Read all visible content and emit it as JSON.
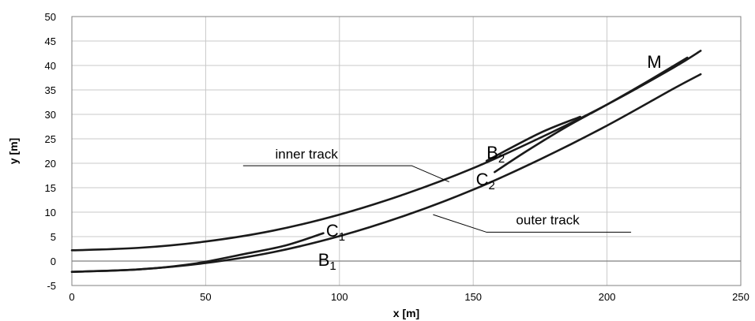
{
  "chart_data": {
    "type": "line",
    "xlabel": "x [m]",
    "ylabel": "y [m]",
    "xlim": [
      0,
      250
    ],
    "ylim": [
      -5,
      50
    ],
    "x_ticks": [
      0,
      50,
      100,
      150,
      200,
      250
    ],
    "y_ticks": [
      -5,
      0,
      5,
      10,
      15,
      20,
      25,
      30,
      35,
      40,
      45,
      50
    ],
    "grid": true,
    "colors": {
      "line": "#1a1a1a",
      "grid": "#c8c8c8",
      "axis": "#808080"
    },
    "series": [
      {
        "points": [
          [
            0,
            2.2
          ],
          [
            25,
            2.7
          ],
          [
            50,
            4.0
          ],
          [
            75,
            6.2
          ],
          [
            100,
            9.5
          ],
          [
            125,
            13.8
          ],
          [
            150,
            19.0
          ],
          [
            175,
            25.2
          ],
          [
            200,
            32.0
          ],
          [
            225,
            39.6
          ],
          [
            235,
            43.0
          ]
        ]
      },
      {
        "points": [
          [
            0,
            -2.2
          ],
          [
            25,
            -1.7
          ],
          [
            50,
            -0.4
          ],
          [
            75,
            1.8
          ],
          [
            100,
            5.1
          ],
          [
            125,
            9.4
          ],
          [
            150,
            14.6
          ],
          [
            175,
            20.8
          ],
          [
            200,
            27.7
          ],
          [
            225,
            35.3
          ],
          [
            235,
            38.2
          ]
        ]
      },
      {
        "points": [
          [
            0,
            -2.2
          ],
          [
            25,
            -1.7
          ],
          [
            45,
            -0.6
          ],
          [
            65,
            1.5
          ],
          [
            80,
            3.2
          ],
          [
            94,
            5.7
          ]
        ]
      },
      {
        "points": [
          [
            158,
            18.2
          ],
          [
            170,
            22.5
          ],
          [
            185,
            27.5
          ],
          [
            200,
            32.0
          ],
          [
            215,
            36.7
          ],
          [
            230,
            41.6
          ]
        ]
      },
      {
        "points": [
          [
            155,
            20.5
          ],
          [
            175,
            26.2
          ],
          [
            190,
            29.5
          ]
        ]
      }
    ],
    "annotations": {
      "inner_track": {
        "text": "inner track",
        "at": [
          76,
          21
        ]
      },
      "outer_track": {
        "text": "outer track",
        "at": [
          166,
          7.5
        ]
      },
      "M": {
        "text": "M",
        "at": [
          215,
          39.5
        ]
      },
      "B2": {
        "main": "B",
        "sub": "2",
        "at": [
          155,
          21
        ]
      },
      "C2": {
        "main": "C",
        "sub": "2",
        "at": [
          151,
          15.5
        ]
      },
      "C1": {
        "main": "C",
        "sub": "1",
        "at": [
          95,
          5
        ]
      },
      "B1": {
        "main": "B",
        "sub": "1",
        "at": [
          92,
          -1
        ]
      }
    },
    "leaders": [
      {
        "from": [
          64,
          19.5
        ],
        "via": [
          127,
          19.5
        ],
        "to": [
          141,
          16.2
        ]
      },
      {
        "from": [
          209,
          5.9
        ],
        "via": [
          155,
          5.9
        ],
        "to": [
          135,
          9.5
        ]
      }
    ]
  }
}
